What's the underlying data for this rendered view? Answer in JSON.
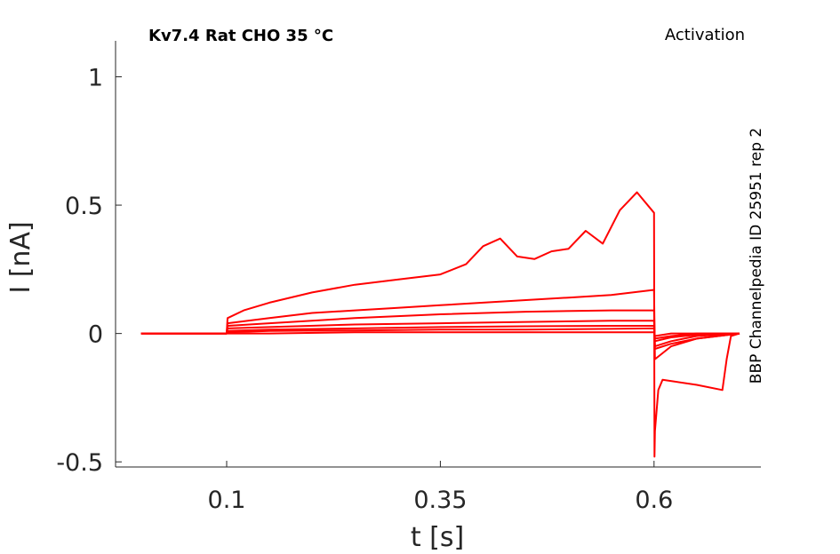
{
  "chart_data": {
    "type": "line",
    "title": "Kv7.4  Rat  CHO  35 °C",
    "protocol": "Activation",
    "side_label": "BBP Channelpedia ID 25951 rep 2",
    "xlabel": "t [s]",
    "ylabel": "I [nA]",
    "xlim": [
      -0.03,
      0.725
    ],
    "ylim": [
      -0.52,
      1.14
    ],
    "x_ticks": [
      0.1,
      0.35,
      0.6
    ],
    "x_tick_labels": [
      "0.1",
      "0.35",
      "0.6"
    ],
    "y_ticks": [
      -0.5,
      0,
      0.5,
      1
    ],
    "y_tick_labels": [
      "-0.5",
      "0",
      "0.5",
      "1"
    ],
    "grid": false,
    "color": "#ff0000",
    "series": [
      {
        "x": [
          0.0,
          0.1,
          0.101,
          0.15,
          0.25,
          0.35,
          0.45,
          0.55,
          0.6,
          0.601,
          0.62,
          0.65,
          0.7
        ],
        "y": [
          0.0,
          0.0,
          0.0,
          0.0,
          0.005,
          0.005,
          0.005,
          0.005,
          0.005,
          -0.01,
          0.0,
          0.0,
          0.0
        ]
      },
      {
        "x": [
          0.0,
          0.1,
          0.101,
          0.15,
          0.25,
          0.35,
          0.45,
          0.55,
          0.6,
          0.601,
          0.62,
          0.65,
          0.7
        ],
        "y": [
          0.0,
          0.0,
          0.005,
          0.01,
          0.012,
          0.015,
          0.015,
          0.018,
          0.02,
          -0.02,
          -0.01,
          0.0,
          0.0
        ]
      },
      {
        "x": [
          0.0,
          0.1,
          0.101,
          0.15,
          0.25,
          0.35,
          0.45,
          0.55,
          0.6,
          0.601,
          0.62,
          0.65,
          0.7
        ],
        "y": [
          0.0,
          0.0,
          0.01,
          0.015,
          0.02,
          0.025,
          0.028,
          0.03,
          0.03,
          -0.03,
          -0.015,
          -0.005,
          0.0
        ]
      },
      {
        "x": [
          0.0,
          0.1,
          0.101,
          0.15,
          0.25,
          0.35,
          0.45,
          0.55,
          0.6,
          0.601,
          0.62,
          0.65,
          0.7
        ],
        "y": [
          0.0,
          0.0,
          0.02,
          0.025,
          0.035,
          0.04,
          0.045,
          0.05,
          0.05,
          -0.05,
          -0.03,
          -0.01,
          0.0
        ]
      },
      {
        "x": [
          0.0,
          0.1,
          0.101,
          0.15,
          0.25,
          0.35,
          0.45,
          0.55,
          0.6,
          0.601,
          0.62,
          0.65,
          0.7
        ],
        "y": [
          0.0,
          0.0,
          0.03,
          0.04,
          0.06,
          0.075,
          0.085,
          0.09,
          0.09,
          -0.06,
          -0.04,
          -0.02,
          0.0
        ]
      },
      {
        "x": [
          0.0,
          0.1,
          0.101,
          0.15,
          0.2,
          0.25,
          0.3,
          0.35,
          0.4,
          0.45,
          0.5,
          0.55,
          0.6,
          0.601,
          0.62,
          0.65,
          0.7
        ],
        "y": [
          0.0,
          0.0,
          0.04,
          0.06,
          0.08,
          0.09,
          0.1,
          0.11,
          0.12,
          0.13,
          0.14,
          0.15,
          0.17,
          -0.1,
          -0.05,
          -0.02,
          0.0
        ]
      },
      {
        "x": [
          0.0,
          0.1,
          0.101,
          0.12,
          0.15,
          0.2,
          0.25,
          0.3,
          0.35,
          0.38,
          0.4,
          0.42,
          0.44,
          0.46,
          0.48,
          0.5,
          0.52,
          0.54,
          0.56,
          0.58,
          0.6,
          0.6005,
          0.601,
          0.605,
          0.61,
          0.65,
          0.68,
          0.685,
          0.69,
          0.7
        ],
        "y": [
          0.0,
          0.0,
          0.06,
          0.09,
          0.12,
          0.16,
          0.19,
          0.21,
          0.23,
          0.27,
          0.34,
          0.37,
          0.3,
          0.29,
          0.32,
          0.33,
          0.4,
          0.35,
          0.48,
          0.55,
          0.47,
          -0.48,
          -0.38,
          -0.22,
          -0.18,
          -0.2,
          -0.22,
          -0.1,
          -0.01,
          0.0
        ]
      }
    ]
  }
}
